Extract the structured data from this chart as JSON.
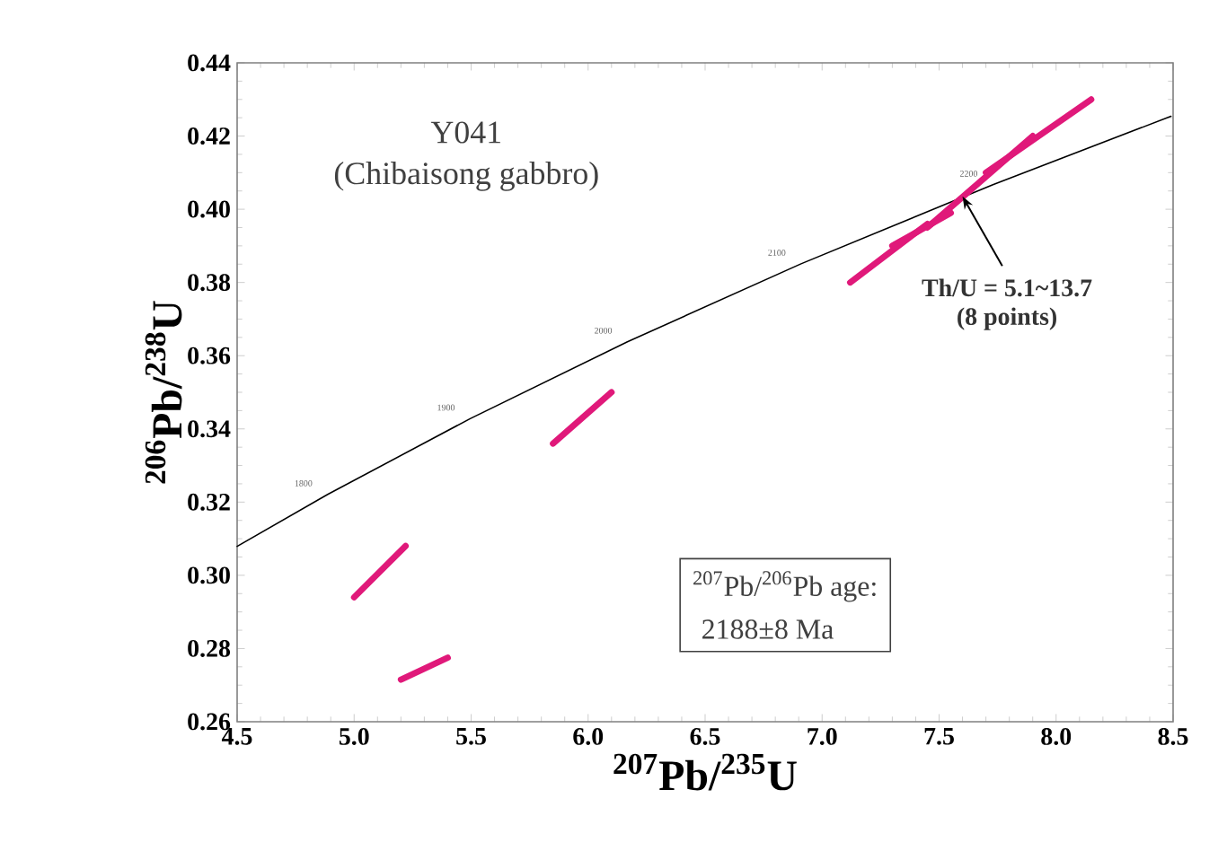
{
  "chart_data": {
    "type": "line",
    "title": "Y041",
    "subtitle": "(Chibaisong gabbro)",
    "xlabel": "$^{207}$Pb/$^{235}$U",
    "ylabel": "$^{206}$Pb/$^{238}$U",
    "xlim": [
      4.5,
      8.5
    ],
    "ylim": [
      0.26,
      0.44
    ],
    "xticks": [
      4.5,
      {
        "value": 5,
        "label": "5.0"
      },
      5.5,
      {
        "value": 6,
        "label": "6.0"
      },
      6.5,
      {
        "value": 7,
        "label": "7.0"
      },
      7.5,
      {
        "value": 8,
        "label": "8.0"
      },
      8.5
    ],
    "yticks": [
      {
        "value": 0.26,
        "label": "0.26"
      },
      {
        "value": 0.28,
        "label": "0.28"
      },
      {
        "value": 0.3,
        "label": "0.30"
      },
      {
        "value": 0.32,
        "label": "0.32"
      },
      {
        "value": 0.34,
        "label": "0.34"
      },
      {
        "value": 0.36,
        "label": "0.36"
      },
      {
        "value": 0.38,
        "label": "0.38"
      },
      {
        "value": 0.4,
        "label": "0.40"
      },
      {
        "value": 0.42,
        "label": "0.42"
      },
      {
        "value": 0.44,
        "label": "0.44"
      }
    ],
    "grid": false,
    "marker": "none",
    "line_style": "solid",
    "series": [
      {
        "color": "#000000",
        "x": [
          4.5,
          4.887,
          5.496,
          6.168,
          6.91,
          7.73,
          8.491
        ],
        "values": [
          0.3079,
          0.3221,
          0.3428,
          0.3638,
          0.3851,
          0.4067,
          0.4254
        ]
      },
      {
        "color": "#e0197a",
        "x": [
          5.2,
          5.4
        ],
        "values": [
          0.2715,
          0.2775
        ]
      },
      {
        "color": "#e0197a",
        "x": [
          5.0,
          5.22
        ],
        "values": [
          0.294,
          0.308
        ]
      },
      {
        "color": "#e0197a",
        "x": [
          5.85,
          6.1
        ],
        "values": [
          0.336,
          0.35
        ]
      },
      {
        "color": "#e0197a",
        "x": [
          7.12,
          7.45
        ],
        "values": [
          0.38,
          0.396
        ]
      },
      {
        "color": "#e0197a",
        "x": [
          7.3,
          7.55
        ],
        "values": [
          0.39,
          0.399
        ]
      },
      {
        "color": "#e0197a",
        "x": [
          7.45,
          7.9
        ],
        "values": [
          0.395,
          0.42
        ]
      },
      {
        "color": "#e0197a",
        "x": [
          7.7,
          8.15
        ],
        "values": [
          0.41,
          0.43
        ]
      }
    ],
    "annotations": [
      {
        "text": "1800",
        "x": 4.887,
        "y": 0.3221
      },
      {
        "text": "1900",
        "x": 5.496,
        "y": 0.3428
      },
      {
        "text": "2000",
        "x": 6.168,
        "y": 0.3638
      },
      {
        "text": "2100",
        "x": 6.91,
        "y": 0.3851
      },
      {
        "text": "2200",
        "x": 7.73,
        "y": 0.4067
      },
      {
        "text": "Th/U = 5.1~13.7",
        "x": 7.6,
        "y": 0.4035
      },
      "(8 points)",
      "$^{207}$Pb/$^{206}$Pb age:",
      "2188±8 Ma"
    ]
  }
}
